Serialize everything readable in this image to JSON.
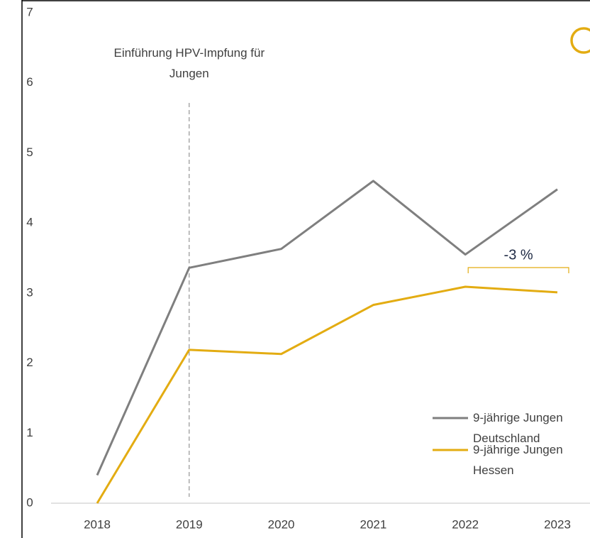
{
  "chart_data": {
    "type": "line",
    "x": [
      2018,
      2019,
      2020,
      2021,
      2022,
      2023
    ],
    "series": [
      {
        "name": "9-jährige Jungen Deutschland",
        "color": "#7f7f7f",
        "values": [
          0.4,
          3.36,
          3.63,
          4.6,
          3.55,
          4.48
        ]
      },
      {
        "name": "9-jährige Jungen Hessen",
        "color": "#e3ac12",
        "values": [
          0,
          2.19,
          2.13,
          2.83,
          3.09,
          3.01
        ]
      }
    ],
    "xlim": [
      2018,
      2023
    ],
    "ylim": [
      0,
      7
    ],
    "yticks": [
      0,
      1,
      2,
      3,
      4,
      5,
      6,
      7
    ],
    "xticks": [
      2018,
      2019,
      2020,
      2021,
      2022,
      2023
    ],
    "annotations": [
      {
        "text": "Einführung HPV-Impfung für Jungen",
        "x": 2019
      },
      {
        "text": "-3 %",
        "x": [
          2022,
          2023
        ]
      }
    ],
    "legend": "lower right"
  }
}
